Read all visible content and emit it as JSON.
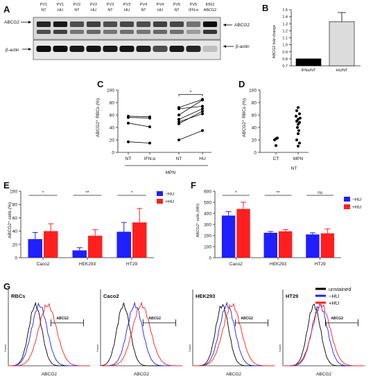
{
  "panels": {
    "A": {
      "letter": "A",
      "lanes": [
        {
          "top": "PV1",
          "bottom": "NT"
        },
        {
          "top": "PV1",
          "bottom": "HU"
        },
        {
          "top": "PV2",
          "bottom": "NT"
        },
        {
          "top": "PV2",
          "bottom": "HU"
        },
        {
          "top": "PV3",
          "bottom": "NT"
        },
        {
          "top": "PV3",
          "bottom": "HU"
        },
        {
          "top": "PV4",
          "bottom": "NT"
        },
        {
          "top": "PV4",
          "bottom": "HU"
        },
        {
          "top": "PV5",
          "bottom": "NT"
        },
        {
          "top": "PV5",
          "bottom": "IFN-α"
        },
        {
          "top": "K562",
          "bottom": "ABCG2"
        }
      ],
      "abcg2_intensity": [
        0.85,
        0.9,
        0.7,
        0.75,
        0.7,
        0.72,
        0.7,
        0.75,
        0.72,
        0.55,
        0.95
      ],
      "actin_intensity": [
        0.95,
        0.95,
        0.9,
        0.92,
        0.9,
        0.92,
        0.88,
        0.7,
        0.9,
        0.85,
        0.25
      ],
      "label_abcg2_left": "ABCG2",
      "label_abcg2_right": "ABCG2",
      "label_actin_left": "β-actin",
      "label_actin_right": "β-actin"
    },
    "B": {
      "letter": "B",
      "ylabel": "ABCG2 fold change",
      "yticks": [
        "0.7",
        "0.8",
        "0.9",
        "1.0",
        "1.1",
        "1.2",
        "1.3",
        "1.4",
        "1.5"
      ],
      "categories": [
        "IFNα/NT",
        "HU/NT"
      ]
    },
    "C": {
      "letter": "C",
      "ylabel": "ABCG2⁺ RBCs (%)",
      "yticks": [
        "0",
        "20",
        "40",
        "60",
        "80",
        "100"
      ],
      "xticks": [
        "NT",
        "IFN-α",
        "NT",
        "HU"
      ],
      "group_label": "MPN",
      "sig": "*"
    },
    "D": {
      "letter": "D",
      "ylabel": "ABCG2⁺ RBCs (%)",
      "yticks": [
        "0",
        "20",
        "40",
        "60",
        "80",
        "100"
      ],
      "xticks": [
        "CT",
        "MPN"
      ],
      "xsub": "NT"
    },
    "E": {
      "letter": "E",
      "ylabel": "ABCG2⁺ cells (%)",
      "yticks": [
        "0",
        "20",
        "40",
        "60",
        "80",
        "100"
      ],
      "legend": [
        "−HU",
        "+HU"
      ],
      "sig": [
        "*",
        "**",
        "*"
      ]
    },
    "F": {
      "letter": "F",
      "ylabel": "ABCG2⁺ cells (MFI)",
      "yticks": [
        "0",
        "100",
        "200",
        "300",
        "400",
        "500",
        "600"
      ],
      "legend": [
        "−HU",
        "+HU"
      ],
      "sig": [
        "*",
        "**",
        "ns"
      ]
    },
    "G": {
      "letter": "G",
      "titles": [
        "RBCs",
        "Caco2",
        "HEK293",
        "HT29"
      ],
      "xlabel": "ABCG2",
      "ylabel": "Count",
      "gate_label": "ABCG2",
      "legend": [
        "unstained",
        "−HU",
        "+HU"
      ]
    }
  },
  "colors": {
    "neg_hu": "#1f1fff",
    "pos_hu": "#ff1f1f",
    "unstained": "#000000",
    "bar_b": "#dcdcdc"
  },
  "chart_data": [
    {
      "type": "bar",
      "panel": "B",
      "categories": [
        "IFNα/NT",
        "HU/NT"
      ],
      "values": [
        0.8,
        1.33
      ],
      "errors": [
        0.0,
        0.13
      ],
      "ylabel": "ABCG2 fold change",
      "ylim": [
        0.7,
        1.5
      ]
    },
    {
      "type": "line",
      "panel": "C",
      "x": [
        "NT",
        "IFN-α",
        "NT",
        "HU"
      ],
      "pairs_ifn": [
        [
          58,
          57
        ],
        [
          56,
          55
        ],
        [
          47,
          41
        ],
        [
          17,
          15
        ]
      ],
      "pairs_hu": [
        [
          20,
          35
        ],
        [
          46,
          66
        ],
        [
          53,
          70
        ],
        [
          60,
          84
        ],
        [
          49,
          62
        ],
        [
          70,
          74
        ],
        [
          72,
          85
        ]
      ],
      "ylabel": "ABCG2⁺ RBCs (%)",
      "ylim": [
        0,
        100
      ]
    },
    {
      "type": "scatter",
      "panel": "D",
      "categories": [
        "CT",
        "MPN NT"
      ],
      "ct": [
        11,
        20,
        23,
        22
      ],
      "mpn": [
        72,
        67,
        62,
        58,
        55,
        53,
        50,
        48,
        45,
        40,
        35,
        30,
        20,
        15,
        10
      ],
      "ylabel": "ABCG2⁺ RBCs (%)",
      "ylim": [
        0,
        100
      ]
    },
    {
      "type": "bar",
      "panel": "E",
      "categories": [
        "Caco2",
        "HEK293",
        "HT29"
      ],
      "series": [
        {
          "name": "−HU",
          "values": [
            28,
            11,
            39
          ],
          "errors": [
            10,
            4,
            14
          ]
        },
        {
          "name": "+HU",
          "values": [
            40,
            33,
            53
          ],
          "errors": [
            11,
            9,
            21
          ]
        }
      ],
      "ylabel": "ABCG2⁺ cells (%)",
      "ylim": [
        0,
        100
      ]
    },
    {
      "type": "bar",
      "panel": "F",
      "categories": [
        "Caco2",
        "HEK293",
        "HT29"
      ],
      "series": [
        {
          "name": "−HU",
          "values": [
            380,
            225,
            210
          ],
          "errors": [
            35,
            12,
            15
          ]
        },
        {
          "name": "+HU",
          "values": [
            440,
            238,
            220
          ],
          "errors": [
            60,
            15,
            40
          ]
        }
      ],
      "ylabel": "ABCG2⁺ cells (MFI)",
      "ylim": [
        0,
        600
      ]
    }
  ]
}
